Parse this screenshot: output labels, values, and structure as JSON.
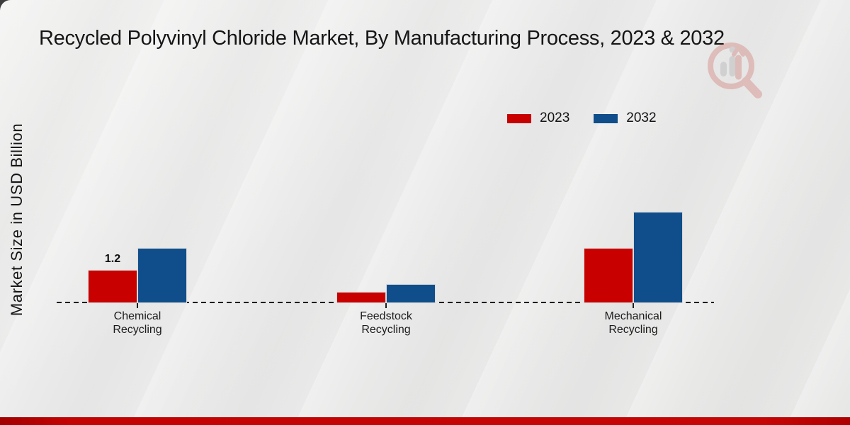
{
  "title": "Recycled Polyvinyl Chloride Market, By Manufacturing Process, 2023 & 2032",
  "y_axis_label": "Market Size in USD Billion",
  "legend": {
    "items": [
      {
        "label": "2023",
        "color": "#c80000"
      },
      {
        "label": "2032",
        "color": "#0f4e8b"
      }
    ]
  },
  "colors": {
    "series_2023": "#c80000",
    "series_2032": "#0f4e8b",
    "footer_bar": "#c00000",
    "axis": "#1d1d1d",
    "background": "#eaeaea"
  },
  "watermark": {
    "icon": "magnifier-bar-chart-logo"
  },
  "chart_data": {
    "type": "bar",
    "title": "Recycled Polyvinyl Chloride Market, By Manufacturing Process, 2023 & 2032",
    "categories": [
      "Chemical Recycling",
      "Feedstock Recycling",
      "Mechanical Recycling"
    ],
    "series": [
      {
        "name": "2023",
        "color": "#c80000",
        "values": [
          1.2,
          0.4,
          2.0
        ]
      },
      {
        "name": "2032",
        "color": "#0f4e8b",
        "values": [
          2.0,
          0.7,
          3.3
        ]
      }
    ],
    "value_labels": [
      {
        "series_index": 0,
        "category_index": 0,
        "text": "1.2"
      }
    ],
    "xlabel": "",
    "ylabel": "Market Size in USD Billion",
    "ylim": [
      0,
      3.6
    ],
    "grid": false,
    "legend_position": "top-right",
    "baseline_style": "dashed"
  }
}
